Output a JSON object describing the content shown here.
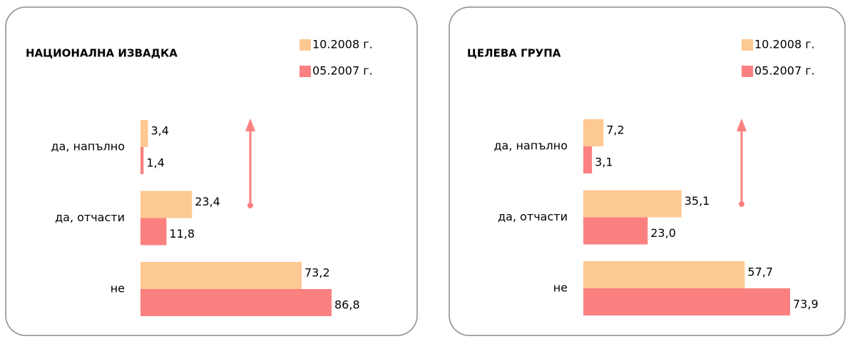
{
  "chart_data": [
    {
      "type": "bar",
      "title": "НАЦИОНАЛНА ИЗВАДКА",
      "categories": [
        "да, напълно",
        "да, отчасти",
        "не"
      ],
      "series": [
        {
          "name": "10.2008 г.",
          "color": "#fdc993",
          "values": [
            3.4,
            23.4,
            73.2
          ],
          "value_labels": [
            "3,4",
            "23,4",
            "73,2"
          ]
        },
        {
          "name": "05.2007 г.",
          "color": "#fb8080",
          "values": [
            1.4,
            11.8,
            86.8
          ],
          "value_labels": [
            "1,4",
            "11,8",
            "86,8"
          ]
        }
      ]
    },
    {
      "type": "bar",
      "title": "ЦЕЛЕВА ГРУПА",
      "categories": [
        "да, напълно",
        "да, отчасти",
        "не"
      ],
      "series": [
        {
          "name": "10.2008 г.",
          "color": "#fdc993",
          "values": [
            7.2,
            35.1,
            57.7
          ],
          "value_labels": [
            "7,2",
            "35,1",
            "57,7"
          ]
        },
        {
          "name": "05.2007 г.",
          "color": "#fb8080",
          "values": [
            3.1,
            23.0,
            73.9
          ],
          "value_labels": [
            "3,1",
            "23,0",
            "73,9"
          ]
        }
      ]
    }
  ]
}
